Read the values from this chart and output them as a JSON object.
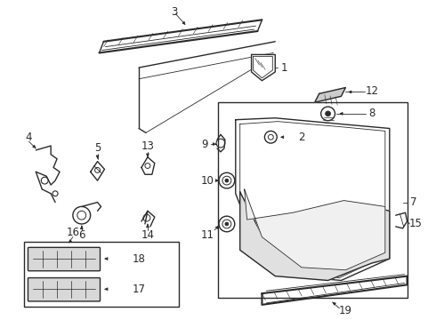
{
  "bg_color": "#ffffff",
  "line_color": "#2a2a2a",
  "fig_width": 4.9,
  "fig_height": 3.6,
  "dpi": 100,
  "label_fs": 8.5,
  "small_part_fs": 7.0
}
